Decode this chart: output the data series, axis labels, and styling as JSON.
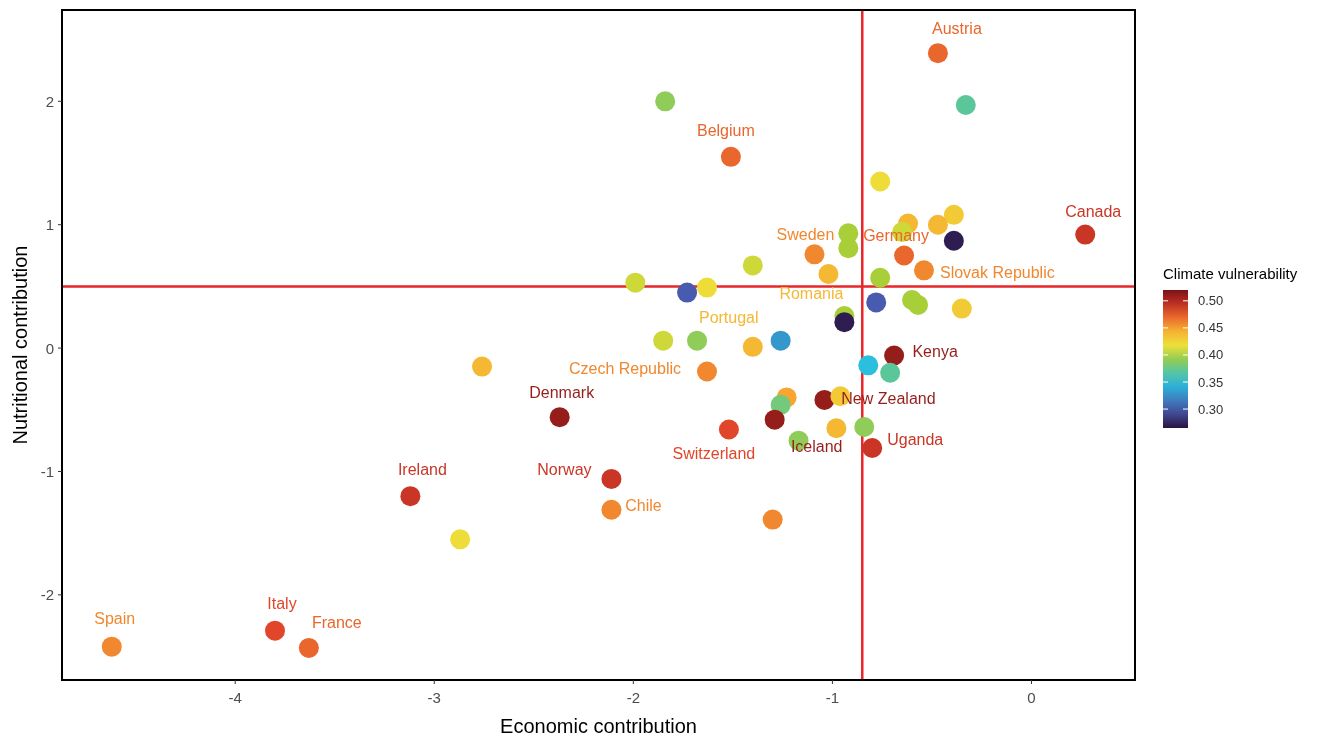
{
  "chart_data": {
    "type": "scatter",
    "xlabel": "Economic contribution",
    "ylabel": "Nutritional contribution",
    "clabel": "Climate vulnerability",
    "xlim": [
      -4.87,
      0.52
    ],
    "ylim": [
      -2.69,
      2.74
    ],
    "xticks": [
      -4,
      -3,
      -2,
      -1,
      0
    ],
    "yticks": [
      -2,
      -1,
      0,
      1,
      2
    ],
    "clim": [
      0.265,
      0.52
    ],
    "cticks": [
      {
        "value": 0.3,
        "label": "0.30"
      },
      {
        "value": 0.35,
        "label": "0.35"
      },
      {
        "value": 0.4,
        "label": "0.40"
      },
      {
        "value": 0.45,
        "label": "0.45"
      },
      {
        "value": 0.5,
        "label": "0.50"
      }
    ],
    "grid": false,
    "marker": "circle",
    "x": [
      -0.47,
      -1.84,
      -0.33,
      -1.51,
      -0.76,
      0.27,
      -0.39,
      -0.62,
      -0.47,
      -0.92,
      -0.39,
      -0.65,
      -0.92,
      -1.09,
      -0.64,
      -1.02,
      -0.54,
      -1.4,
      -1.99,
      -1.63,
      -1.73,
      -0.76,
      -0.78,
      -0.6,
      -0.57,
      -0.35,
      -0.94,
      -0.94,
      -1.85,
      -1.68,
      -1.4,
      -1.26,
      -2.76,
      -1.63,
      -0.69,
      -0.82,
      -0.71,
      -1.23,
      -1.26,
      -1.04,
      -0.96,
      -2.37,
      -1.52,
      -1.29,
      -1.17,
      -0.98,
      -0.84,
      -0.8,
      -3.12,
      -2.11,
      -2.11,
      -1.3,
      -2.87,
      -4.62,
      -3.8,
      -3.63
    ],
    "values": [
      2.39,
      2.0,
      1.97,
      1.55,
      1.35,
      0.92,
      1.08,
      1.01,
      1.0,
      0.93,
      0.87,
      0.94,
      0.81,
      0.76,
      0.75,
      0.6,
      0.63,
      0.67,
      0.53,
      0.49,
      0.45,
      0.57,
      0.37,
      0.39,
      0.35,
      0.32,
      0.26,
      0.21,
      0.06,
      0.06,
      0.01,
      0.06,
      -0.15,
      -0.19,
      -0.06,
      -0.14,
      -0.2,
      -0.4,
      -0.46,
      -0.42,
      -0.39,
      -0.56,
      -0.66,
      -0.58,
      -0.75,
      -0.65,
      -0.64,
      -0.81,
      -1.2,
      -1.06,
      -1.31,
      -1.39,
      -1.55,
      -2.42,
      -2.29,
      -2.43
    ],
    "cvalues": [
      0.47,
      0.39,
      0.37,
      0.47,
      0.42,
      0.49,
      0.43,
      0.44,
      0.44,
      0.4,
      0.27,
      0.41,
      0.4,
      0.46,
      0.47,
      0.44,
      0.46,
      0.41,
      0.41,
      0.42,
      0.3,
      0.4,
      0.3,
      0.4,
      0.4,
      0.43,
      0.4,
      0.27,
      0.41,
      0.39,
      0.44,
      0.33,
      0.44,
      0.46,
      0.51,
      0.35,
      0.37,
      0.45,
      0.38,
      0.51,
      0.43,
      0.51,
      0.48,
      0.51,
      0.39,
      0.44,
      0.39,
      0.49,
      0.49,
      0.49,
      0.46,
      0.46,
      0.42,
      0.46,
      0.48,
      0.47
    ],
    "ref_lines": [
      {
        "axis": "x",
        "value": -0.85,
        "color": "#e8262a"
      },
      {
        "axis": "y",
        "value": 0.5,
        "color": "#e8262a"
      }
    ],
    "annotations": [
      {
        "text": "Austria",
        "x": -0.47,
        "y": 2.39
      },
      {
        "text": "Belgium",
        "x": -1.51,
        "y": 1.55
      },
      {
        "text": "Canada",
        "x": 0.27,
        "y": 0.92
      },
      {
        "text": "Sweden",
        "x": -1.09,
        "y": 0.76
      },
      {
        "text": "Germany",
        "x": -0.64,
        "y": 0.75
      },
      {
        "text": "Slovak Republic",
        "x": -0.54,
        "y": 0.63
      },
      {
        "text": "Romania",
        "x": -1.02,
        "y": 0.6
      },
      {
        "text": "Portugal",
        "x": -1.4,
        "y": 0.01
      },
      {
        "text": "Czech Republic",
        "x": -1.63,
        "y": -0.19
      },
      {
        "text": "Kenya",
        "x": -0.69,
        "y": -0.06
      },
      {
        "text": "New Zealand",
        "x": -1.04,
        "y": -0.42
      },
      {
        "text": "Denmark",
        "x": -2.37,
        "y": -0.56
      },
      {
        "text": "Switzerland",
        "x": -1.52,
        "y": -0.66
      },
      {
        "text": "Iceland",
        "x": -1.29,
        "y": -0.58
      },
      {
        "text": "Uganda",
        "x": -0.8,
        "y": -0.81
      },
      {
        "text": "Ireland",
        "x": -3.12,
        "y": -1.2
      },
      {
        "text": "Norway",
        "x": -2.11,
        "y": -1.06
      },
      {
        "text": "Chile",
        "x": -2.11,
        "y": -1.31
      },
      {
        "text": "Spain",
        "x": -4.62,
        "y": -2.42
      },
      {
        "text": "Italy",
        "x": -3.8,
        "y": -2.29
      },
      {
        "text": "France",
        "x": -3.63,
        "y": -2.43
      }
    ]
  }
}
